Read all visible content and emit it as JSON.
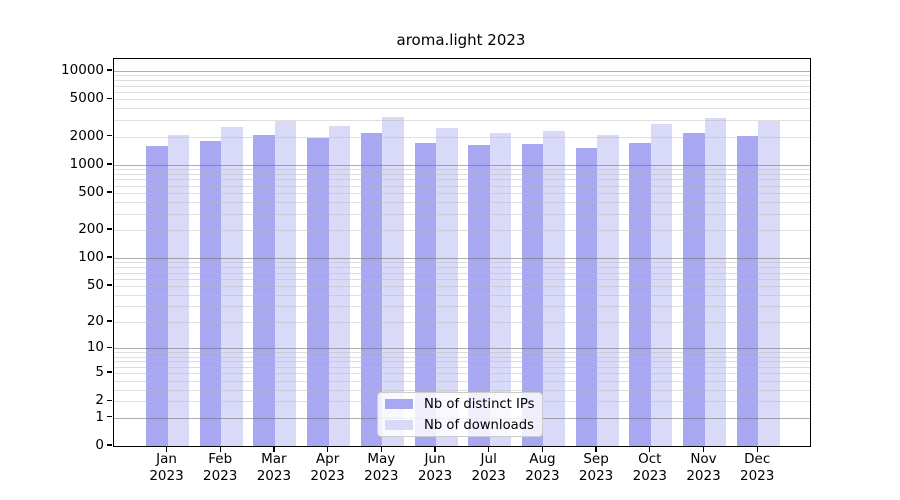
{
  "chart_data": {
    "type": "bar",
    "title": "aroma.light 2023",
    "categories": [
      "Jan",
      "Feb",
      "Mar",
      "Apr",
      "May",
      "Jun",
      "Jul",
      "Aug",
      "Sep",
      "Oct",
      "Nov",
      "Dec"
    ],
    "year_label": "2023",
    "series": [
      {
        "name": "Nb of distinct IPs",
        "color": "#a8a8f2",
        "values": [
          1600,
          1820,
          2110,
          1925,
          2180,
          1730,
          1635,
          1675,
          1505,
          1730,
          2200,
          2045
        ]
      },
      {
        "name": "Nb of downloads",
        "color": "#d9d9f8",
        "values": [
          2095,
          2530,
          2910,
          2570,
          3235,
          2465,
          2180,
          2310,
          2110,
          2700,
          3190,
          2910
        ]
      }
    ],
    "yscale": "log10(value+1)",
    "ytick_values": [
      0,
      1,
      2,
      5,
      10,
      20,
      50,
      100,
      200,
      500,
      1000,
      2000,
      5000,
      10000
    ],
    "ylim": [
      0,
      13000
    ],
    "grid": {
      "major_at_powers_of_10": true,
      "minor_log_subdivisions": true
    },
    "legend_position": "lower-center",
    "colors": {
      "major_grid": "#6e6e6e",
      "minor_grid": "#b9b9b9",
      "spine": "#000000",
      "text": "#000000",
      "background": "#ffffff"
    }
  }
}
